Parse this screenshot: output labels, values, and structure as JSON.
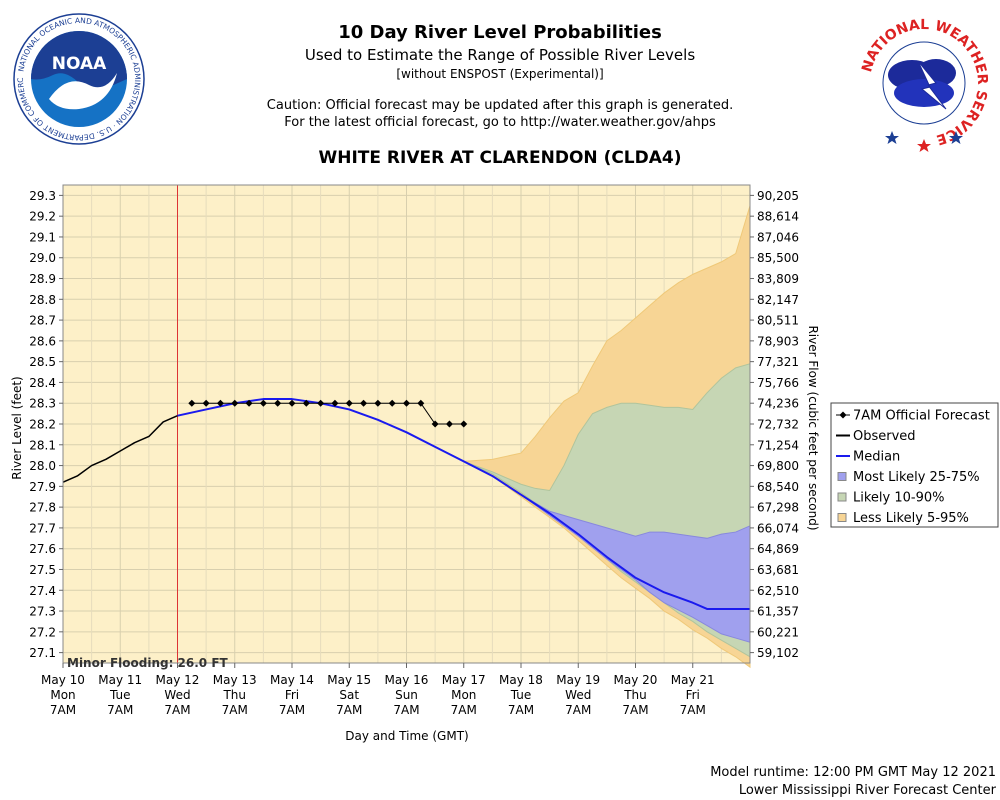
{
  "header": {
    "title": "10 Day River Level Probabilities",
    "subtitle": "Used to Estimate the Range of Possible River Levels",
    "experimental": "[without ENSPOST (Experimental)]",
    "caution_line1": "Caution: Official forecast may be updated after this graph is generated.",
    "caution_line2": "For the latest official forecast, go to http://water.weather.gov/ahps",
    "station": "WHITE RIVER AT CLARENDON (CLDA4)"
  },
  "logos": {
    "noaa_text": "NOAA",
    "noaa_ring": "NATIONAL OCEANIC AND ATMOSPHERIC ADMINISTRATION · U.S. DEPARTMENT OF COMMERCE",
    "nws_ring": "NATIONAL WEATHER SERVICE"
  },
  "footer": {
    "runtime": "Model runtime: 12:00 PM GMT May 12 2021",
    "center": "Lower Mississippi River Forecast Center"
  },
  "colors": {
    "plot_bg": "#fdf0c8",
    "band_5_95": "#f7d595",
    "band_10_90": "#c6d6b4",
    "band_25_75": "#a0a0ee",
    "median": "#1a1aee",
    "observed": "#000000",
    "forecast": "#000000",
    "current_time_line": "#dd3333"
  },
  "chart_data": {
    "type": "area",
    "title": "WHITE RIVER AT CLARENDON (CLDA4)",
    "xlabel": "Day and Time (GMT)",
    "ylabel": "River Level (feet)",
    "y2label": "River Flow (cubic feet per second)",
    "xlim": [
      0,
      12
    ],
    "ylim": [
      27.05,
      29.35
    ],
    "x_unit": "days since May 10 7AM",
    "current_time": 2.0,
    "grid": true,
    "legend_position": "right",
    "x_ticks": [
      {
        "x": 0,
        "line1": "May 10",
        "line2": "Mon",
        "line3": "7AM"
      },
      {
        "x": 1,
        "line1": "May 11",
        "line2": "Tue",
        "line3": "7AM"
      },
      {
        "x": 2,
        "line1": "May 12",
        "line2": "Wed",
        "line3": "7AM"
      },
      {
        "x": 3,
        "line1": "May 13",
        "line2": "Thu",
        "line3": "7AM"
      },
      {
        "x": 4,
        "line1": "May 14",
        "line2": "Fri",
        "line3": "7AM"
      },
      {
        "x": 5,
        "line1": "May 15",
        "line2": "Sat",
        "line3": "7AM"
      },
      {
        "x": 6,
        "line1": "May 16",
        "line2": "Sun",
        "line3": "7AM"
      },
      {
        "x": 7,
        "line1": "May 17",
        "line2": "Mon",
        "line3": "7AM"
      },
      {
        "x": 8,
        "line1": "May 18",
        "line2": "Tue",
        "line3": "7AM"
      },
      {
        "x": 9,
        "line1": "May 19",
        "line2": "Wed",
        "line3": "7AM"
      },
      {
        "x": 10,
        "line1": "May 20",
        "line2": "Thu",
        "line3": "7AM"
      },
      {
        "x": 11,
        "line1": "May 21",
        "line2": "Fri",
        "line3": "7AM"
      }
    ],
    "y_ticks": [
      "29.3",
      "29.2",
      "29.1",
      "29.0",
      "28.9",
      "28.8",
      "28.7",
      "28.6",
      "28.5",
      "28.4",
      "28.3",
      "28.2",
      "28.1",
      "28.0",
      "27.9",
      "27.8",
      "27.7",
      "27.6",
      "27.5",
      "27.4",
      "27.3",
      "27.2",
      "27.1"
    ],
    "y_tick_values": [
      29.3,
      29.2,
      29.1,
      29.0,
      28.9,
      28.8,
      28.7,
      28.6,
      28.5,
      28.4,
      28.3,
      28.2,
      28.1,
      28.0,
      27.9,
      27.8,
      27.7,
      27.6,
      27.5,
      27.4,
      27.3,
      27.2,
      27.1
    ],
    "y2_ticks": [
      {
        "stage": 29.3,
        "label": "90,205"
      },
      {
        "stage": 29.2,
        "label": "88,614"
      },
      {
        "stage": 29.1,
        "label": "87,046"
      },
      {
        "stage": 29.0,
        "label": "85,500"
      },
      {
        "stage": 28.9,
        "label": "83,809"
      },
      {
        "stage": 28.8,
        "label": "82,147"
      },
      {
        "stage": 28.7,
        "label": "80,511"
      },
      {
        "stage": 28.6,
        "label": "78,903"
      },
      {
        "stage": 28.5,
        "label": "77,321"
      },
      {
        "stage": 28.4,
        "label": "75,766"
      },
      {
        "stage": 28.3,
        "label": "74,236"
      },
      {
        "stage": 28.2,
        "label": "72,732"
      },
      {
        "stage": 28.1,
        "label": "71,254"
      },
      {
        "stage": 28.0,
        "label": "69,800"
      },
      {
        "stage": 27.9,
        "label": "68,540"
      },
      {
        "stage": 27.8,
        "label": "67,298"
      },
      {
        "stage": 27.7,
        "label": "66,074"
      },
      {
        "stage": 27.6,
        "label": "64,869"
      },
      {
        "stage": 27.5,
        "label": "63,681"
      },
      {
        "stage": 27.4,
        "label": "62,510"
      },
      {
        "stage": 27.3,
        "label": "61,357"
      },
      {
        "stage": 27.2,
        "label": "60,221"
      },
      {
        "stage": 27.1,
        "label": "59,102"
      }
    ],
    "flood_label": "Minor Flooding: 26.0 FT",
    "legend": [
      {
        "key": "forecast",
        "label": "7AM Official Forecast"
      },
      {
        "key": "observed",
        "label": "Observed"
      },
      {
        "key": "median",
        "label": "Median"
      },
      {
        "key": "band_25_75",
        "label": "Most Likely 25-75%"
      },
      {
        "key": "band_10_90",
        "label": "Likely 10-90%"
      },
      {
        "key": "band_5_95",
        "label": "Less Likely 5-95%"
      }
    ],
    "observed": {
      "x": [
        0,
        0.25,
        0.5,
        0.75,
        1.0,
        1.25,
        1.5,
        1.75,
        2.0
      ],
      "y": [
        27.92,
        27.95,
        28.0,
        28.03,
        28.07,
        28.11,
        28.14,
        28.21,
        28.24
      ]
    },
    "forecast": {
      "x": [
        2.25,
        2.5,
        2.75,
        3.0,
        3.25,
        3.5,
        3.75,
        4.0,
        4.25,
        4.5,
        4.75,
        5.0,
        5.25,
        5.5,
        5.75,
        6.0,
        6.25,
        6.5,
        6.75,
        7.0
      ],
      "y": [
        28.3,
        28.3,
        28.3,
        28.3,
        28.3,
        28.3,
        28.3,
        28.3,
        28.3,
        28.3,
        28.3,
        28.3,
        28.3,
        28.3,
        28.3,
        28.3,
        28.3,
        28.2,
        28.2,
        28.2
      ]
    },
    "median": {
      "x": [
        2.0,
        2.5,
        3.0,
        3.5,
        4.0,
        4.5,
        5.0,
        5.5,
        6.0,
        6.5,
        7.0,
        7.5,
        8.0,
        8.5,
        9.0,
        9.5,
        10.0,
        10.5,
        11.0,
        11.25,
        11.5,
        12.0
      ],
      "y": [
        28.24,
        28.27,
        28.3,
        28.32,
        28.32,
        28.3,
        28.27,
        28.22,
        28.16,
        28.09,
        28.02,
        27.95,
        27.86,
        27.77,
        27.67,
        27.56,
        27.46,
        27.39,
        27.34,
        27.31,
        27.31,
        27.31
      ]
    },
    "band_5_95": {
      "x": [
        7.0,
        7.5,
        8.0,
        8.25,
        8.5,
        8.75,
        9.0,
        9.25,
        9.5,
        9.75,
        10.0,
        10.25,
        10.5,
        10.75,
        11.0,
        11.25,
        11.5,
        11.75,
        12.0
      ],
      "upper": [
        28.02,
        28.03,
        28.06,
        28.14,
        28.23,
        28.31,
        28.35,
        28.48,
        28.6,
        28.65,
        28.71,
        28.77,
        28.83,
        28.88,
        28.92,
        28.95,
        28.98,
        29.02,
        29.25
      ],
      "lower": [
        28.02,
        27.95,
        27.85,
        27.8,
        27.75,
        27.7,
        27.64,
        27.58,
        27.52,
        27.46,
        27.41,
        27.36,
        27.3,
        27.26,
        27.21,
        27.17,
        27.12,
        27.08,
        27.03
      ]
    },
    "band_10_90": {
      "x": [
        7.0,
        7.5,
        8.0,
        8.25,
        8.5,
        8.75,
        9.0,
        9.25,
        9.5,
        9.75,
        10.0,
        10.25,
        10.5,
        10.75,
        11.0,
        11.25,
        11.5,
        11.75,
        12.0
      ],
      "upper": [
        28.02,
        27.97,
        27.91,
        27.89,
        27.88,
        28.0,
        28.15,
        28.25,
        28.28,
        28.3,
        28.3,
        28.29,
        28.28,
        28.28,
        28.27,
        28.35,
        28.42,
        28.47,
        28.49
      ],
      "lower": [
        28.02,
        27.96,
        27.87,
        27.82,
        27.77,
        27.73,
        27.67,
        27.61,
        27.55,
        27.49,
        27.44,
        27.39,
        27.34,
        27.29,
        27.25,
        27.2,
        27.16,
        27.12,
        27.08
      ]
    },
    "band_25_75": {
      "x": [
        7.0,
        7.5,
        8.0,
        8.5,
        9.0,
        9.5,
        10.0,
        10.25,
        10.5,
        11.0,
        11.25,
        11.5,
        11.75,
        12.0
      ],
      "upper": [
        28.02,
        27.95,
        27.86,
        27.78,
        27.74,
        27.7,
        27.66,
        27.68,
        27.68,
        27.66,
        27.65,
        27.67,
        27.68,
        27.71
      ],
      "lower": [
        28.02,
        27.95,
        27.86,
        27.76,
        27.66,
        27.55,
        27.45,
        27.39,
        27.34,
        27.27,
        27.23,
        27.19,
        27.17,
        27.15
      ]
    }
  }
}
